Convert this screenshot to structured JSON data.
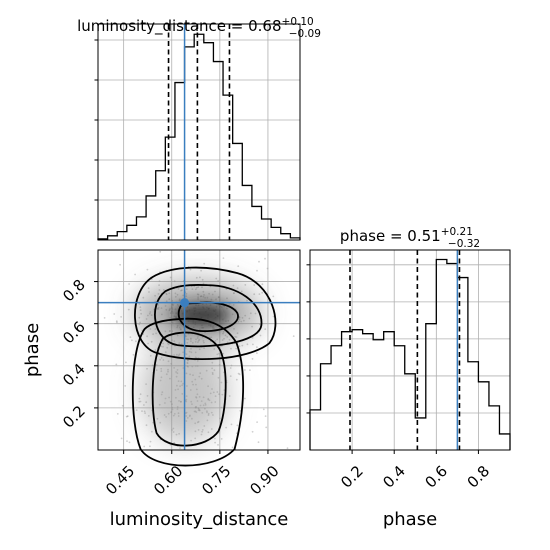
{
  "chart_data": {
    "type": "corner",
    "parameters": [
      "luminosity_distance",
      "phase"
    ],
    "truths": {
      "luminosity_distance": 0.64,
      "phase": 0.7
    },
    "panels": [
      {
        "type": "histogram",
        "parameter": "luminosity_distance",
        "title_prefix": "luminosity_distance = ",
        "median": "0.68",
        "upper_err": "+0.10",
        "lower_err": "−0.09",
        "xlim": [
          0.37,
          1.0
        ],
        "quantiles": [
          0.59,
          0.68,
          0.78
        ],
        "bin_edges": [
          0.37,
          0.4,
          0.43,
          0.46,
          0.49,
          0.52,
          0.55,
          0.58,
          0.61,
          0.64,
          0.67,
          0.7,
          0.73,
          0.76,
          0.79,
          0.82,
          0.85,
          0.88,
          0.91,
          0.94,
          0.97,
          1.0
        ],
        "counts": [
          0.5,
          2,
          4,
          7,
          11,
          21,
          33,
          49,
          75,
          92,
          98,
          94,
          85,
          69,
          46,
          26,
          16,
          10,
          6,
          3,
          1
        ]
      },
      {
        "type": "histogram",
        "parameter": "phase",
        "title_prefix": "phase = ",
        "median": "0.51",
        "upper_err": "+0.21",
        "lower_err": "−0.32",
        "xlim": [
          0.0,
          0.95
        ],
        "quantiles": [
          0.19,
          0.51,
          0.71
        ],
        "bin_edges": [
          0.0,
          0.05,
          0.1,
          0.15,
          0.2,
          0.25,
          0.3,
          0.35,
          0.4,
          0.45,
          0.5,
          0.55,
          0.6,
          0.65,
          0.7,
          0.75,
          0.8,
          0.85,
          0.9,
          0.95
        ],
        "counts": [
          20,
          43,
          52,
          59,
          60,
          58,
          55,
          59,
          52,
          38,
          16,
          63,
          95,
          93,
          86,
          44,
          34,
          22,
          8
        ]
      },
      {
        "type": "2d-density",
        "x": "luminosity_distance",
        "y": "phase",
        "xlim": [
          0.37,
          1.0
        ],
        "ylim": [
          0.0,
          0.95
        ],
        "modes": [
          {
            "x": 0.68,
            "y": 0.65,
            "level": "highest"
          },
          {
            "x": 0.64,
            "y": 0.28,
            "level": "medium"
          }
        ]
      }
    ],
    "x_ticks": {
      "luminosity_distance": [
        "0.45",
        "0.60",
        "0.75",
        "0.90"
      ],
      "phase": [
        "0.2",
        "0.4",
        "0.6",
        "0.8"
      ]
    },
    "y_ticks": {
      "phase": [
        "0.2",
        "0.4",
        "0.6",
        "0.8"
      ]
    },
    "xlabels": [
      "luminosity_distance",
      "phase"
    ],
    "ylabel": "phase",
    "colors": {
      "hist": "#000000",
      "truth": "#3a7ebf",
      "quantile": "#000000",
      "grid": "#b0b0b0"
    },
    "grid": true
  }
}
